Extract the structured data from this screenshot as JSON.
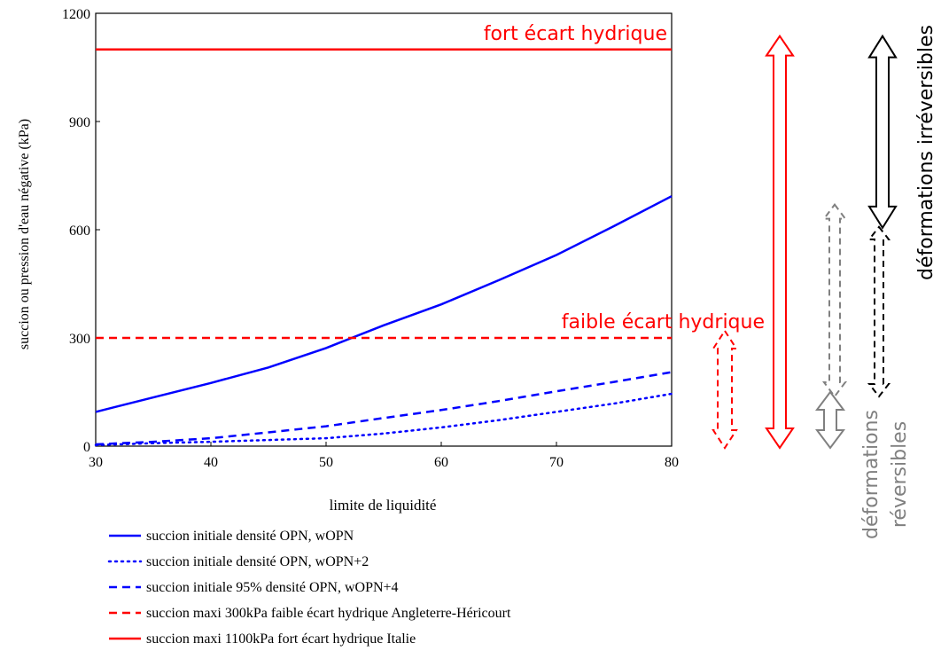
{
  "chart_data": {
    "type": "line",
    "xlabel": "limite de liquidité",
    "ylabel": "succion ou pression d'eau négative (kPa)",
    "xlim": [
      30,
      80
    ],
    "ylim": [
      0,
      1200
    ],
    "xticks": [
      "30",
      "40",
      "50",
      "60",
      "70",
      "80"
    ],
    "yticks": [
      "0",
      "300",
      "600",
      "900",
      "1200"
    ],
    "grid": false,
    "legend_position": "bottom",
    "series": [
      {
        "name": "succion initiale densité OPN, wOPN",
        "style": "solid",
        "color": "#0000ff",
        "x": [
          30,
          35,
          40,
          45,
          50,
          55,
          60,
          65,
          70,
          75,
          80
        ],
        "y": [
          95,
          135,
          175,
          218,
          272,
          335,
          393,
          460,
          530,
          610,
          693
        ]
      },
      {
        "name": "succion initiale densité OPN, wOPN+2",
        "style": "dotted",
        "color": "#0000ff",
        "x": [
          30,
          35,
          40,
          45,
          50,
          55,
          60,
          65,
          70,
          75,
          80
        ],
        "y": [
          3,
          8,
          12,
          17,
          22,
          35,
          52,
          72,
          95,
          118,
          145
        ]
      },
      {
        "name": "succion initiale 95% densité OPN, wOPN+4",
        "style": "dashed",
        "color": "#0000ff",
        "x": [
          30,
          35,
          40,
          45,
          50,
          55,
          60,
          65,
          70,
          75,
          80
        ],
        "y": [
          5,
          12,
          22,
          38,
          55,
          78,
          100,
          125,
          152,
          178,
          205
        ]
      },
      {
        "name": "succion maxi 300kPa faible écart hydrique Angleterre-Héricourt",
        "style": "dashed",
        "color": "#ff0000",
        "x": [
          30,
          80
        ],
        "y": [
          300,
          300
        ]
      },
      {
        "name": "succion maxi 1100kPa fort écart hydrique Italie",
        "style": "solid",
        "color": "#ff0000",
        "x": [
          30,
          80
        ],
        "y": [
          1100,
          1100
        ]
      }
    ],
    "annotations": {
      "strong": "fort écart hydrique",
      "weak": "faible écart hydrique",
      "irreversible": "déformations irréversibles",
      "reversible_line1": "déformations",
      "reversible_line2": "réversibles"
    },
    "arrows": [
      {
        "name": "weak-gap-arrow",
        "style": "dashed-outline",
        "color": "#ff0000",
        "from": 0,
        "to": 300
      },
      {
        "name": "strong-gap-arrow",
        "style": "outline",
        "color": "#ff0000",
        "from": 0,
        "to": 1100
      },
      {
        "name": "reversible-arrow",
        "style": "outline",
        "color": "#808080",
        "from": 0,
        "to": 150
      },
      {
        "name": "reversible-range-arrow",
        "style": "dashed-outline",
        "color": "#808080",
        "from": 150,
        "to": 650
      },
      {
        "name": "irreversible-arrow",
        "style": "outline",
        "color": "#000000",
        "from": 620,
        "to": 1100
      },
      {
        "name": "irreversible-range-arrow",
        "style": "dashed-outline",
        "color": "#000000",
        "from": 150,
        "to": 620
      }
    ]
  }
}
